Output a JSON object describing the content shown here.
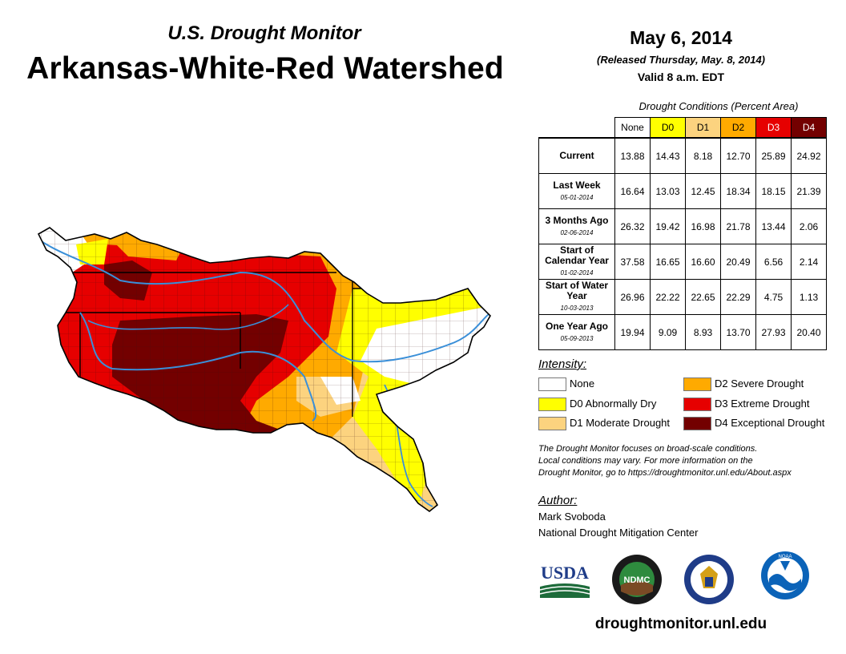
{
  "header": {
    "subtitle": "U.S. Drought Monitor",
    "title": "Arkansas-White-Red Watershed",
    "date": "May 6, 2014",
    "released": "(Released Thursday, May. 8, 2014)",
    "valid": "Valid 8 a.m. EDT"
  },
  "table": {
    "caption": "Drought Conditions (Percent Area)",
    "columns": [
      "None",
      "D0",
      "D1",
      "D2",
      "D3",
      "D4"
    ],
    "column_colors": [
      "#ffffff",
      "#ffff00",
      "#fcd37f",
      "#ffaa00",
      "#e60000",
      "#730000"
    ],
    "rows": [
      {
        "label": "Current",
        "date": "",
        "values": [
          "13.88",
          "14.43",
          "8.18",
          "12.70",
          "25.89",
          "24.92"
        ]
      },
      {
        "label": "Last Week",
        "date": "05-01-2014",
        "values": [
          "16.64",
          "13.03",
          "12.45",
          "18.34",
          "18.15",
          "21.39"
        ]
      },
      {
        "label": "3 Months Ago",
        "date": "02-06-2014",
        "values": [
          "26.32",
          "19.42",
          "16.98",
          "21.78",
          "13.44",
          "2.06"
        ]
      },
      {
        "label": "Start of Calendar Year",
        "date": "01-02-2014",
        "values": [
          "37.58",
          "16.65",
          "16.60",
          "20.49",
          "6.56",
          "2.14"
        ]
      },
      {
        "label": "Start of Water Year",
        "date": "10-03-2013",
        "values": [
          "26.96",
          "22.22",
          "22.65",
          "22.29",
          "4.75",
          "1.13"
        ]
      },
      {
        "label": "One Year Ago",
        "date": "05-09-2013",
        "values": [
          "19.94",
          "9.09",
          "8.93",
          "13.70",
          "27.93",
          "20.40"
        ]
      }
    ]
  },
  "legend": {
    "heading": "Intensity:",
    "items": [
      {
        "label": "None",
        "color": "#ffffff"
      },
      {
        "label": "D0 Abnormally Dry",
        "color": "#ffff00"
      },
      {
        "label": "D1 Moderate Drought",
        "color": "#fcd37f"
      },
      {
        "label": "D2 Severe Drought",
        "color": "#ffaa00"
      },
      {
        "label": "D3 Extreme Drought",
        "color": "#e60000"
      },
      {
        "label": "D4 Exceptional Drought",
        "color": "#730000"
      }
    ]
  },
  "note": {
    "line1": "The Drought Monitor focuses on broad-scale conditions.",
    "line2": "Local conditions may vary. For more information on the",
    "line3": "Drought Monitor, go to https://droughtmonitor.unl.edu/About.aspx"
  },
  "author": {
    "heading": "Author:",
    "name": "Mark Svoboda",
    "org": "National Drought Mitigation Center"
  },
  "logos": {
    "usda": "USDA",
    "ndmc": "NDMC",
    "noaa": "NOAA"
  },
  "footer": {
    "website": "droughtmonitor.unl.edu"
  },
  "colors": {
    "river": "#3a8fd8",
    "boundary": "#222222"
  }
}
